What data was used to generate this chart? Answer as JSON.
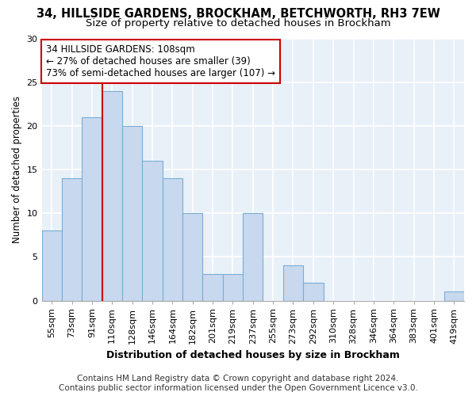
{
  "title": "34, HILLSIDE GARDENS, BROCKHAM, BETCHWORTH, RH3 7EW",
  "subtitle": "Size of property relative to detached houses in Brockham",
  "xlabel": "Distribution of detached houses by size in Brockham",
  "ylabel": "Number of detached properties",
  "categories": [
    "55sqm",
    "73sqm",
    "91sqm",
    "110sqm",
    "128sqm",
    "146sqm",
    "164sqm",
    "182sqm",
    "201sqm",
    "219sqm",
    "237sqm",
    "255sqm",
    "273sqm",
    "292sqm",
    "310sqm",
    "328sqm",
    "346sqm",
    "364sqm",
    "383sqm",
    "401sqm",
    "419sqm"
  ],
  "values": [
    8,
    14,
    21,
    24,
    20,
    16,
    14,
    10,
    3,
    3,
    10,
    0,
    4,
    2,
    0,
    0,
    0,
    0,
    0,
    0,
    1
  ],
  "bar_color": "#c8d8ee",
  "bar_edge_color": "#7aaed6",
  "red_line_x": 2.5,
  "red_line_color": "#cc0000",
  "annotation_line1": "34 HILLSIDE GARDENS: 108sqm",
  "annotation_line2": "← 27% of detached houses are smaller (39)",
  "annotation_line3": "73% of semi-detached houses are larger (107) →",
  "annotation_box_color": "#ffffff",
  "annotation_box_edge_color": "#cc0000",
  "ylim": [
    0,
    30
  ],
  "yticks": [
    0,
    5,
    10,
    15,
    20,
    25,
    30
  ],
  "footer_line1": "Contains HM Land Registry data © Crown copyright and database right 2024.",
  "footer_line2": "Contains public sector information licensed under the Open Government Licence v3.0.",
  "bg_color": "#ffffff",
  "plot_bg_color": "#e8f0f8",
  "grid_color": "#ffffff",
  "title_fontsize": 10.5,
  "subtitle_fontsize": 9.5,
  "xlabel_fontsize": 9,
  "ylabel_fontsize": 8.5,
  "tick_fontsize": 8,
  "annotation_fontsize": 8.5,
  "footer_fontsize": 7.5
}
